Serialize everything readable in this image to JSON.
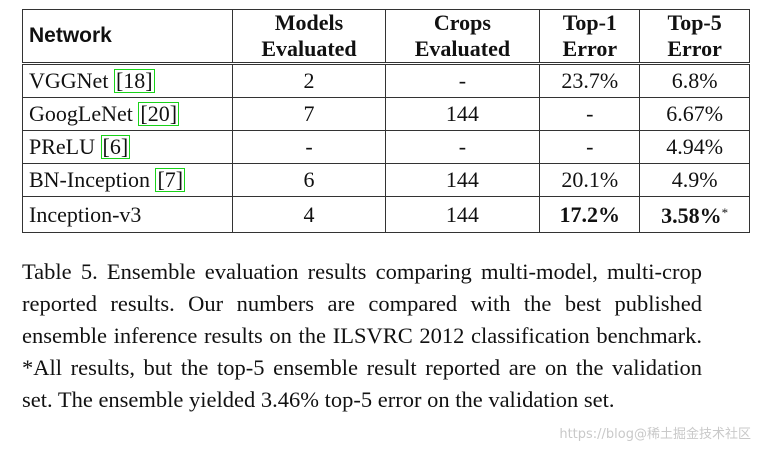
{
  "table": {
    "headers": {
      "network": "Network",
      "models": [
        "Models",
        "Evaluated"
      ],
      "crops": [
        "Crops",
        "Evaluated"
      ],
      "top1": [
        "Top-1",
        "Error"
      ],
      "top5": [
        "Top-5",
        "Error"
      ]
    },
    "rows": [
      {
        "network": "VGGNet",
        "ref": "18",
        "models": "2",
        "crops": "-",
        "top1": "23.7%",
        "top5": "6.8%"
      },
      {
        "network": "GoogLeNet",
        "ref": "20",
        "models": "7",
        "crops": "144",
        "top1": "-",
        "top5": "6.67%"
      },
      {
        "network": "PReLU",
        "ref": "6",
        "models": "-",
        "crops": "-",
        "top1": "-",
        "top5": "4.94%"
      },
      {
        "network": "BN-Inception",
        "ref": "7",
        "models": "6",
        "crops": "144",
        "top1": "20.1%",
        "top5": "4.9%"
      },
      {
        "network": "Inception-v3",
        "models": "4",
        "crops": "144",
        "top1": "17.2%",
        "top5": "3.58%",
        "top5_mark": "*"
      }
    ]
  },
  "caption": "Table 5. Ensemble evaluation results comparing multi-model, multi-crop reported results. Our numbers are compared with the best published ensemble inference results on the ILSVRC 2012 classification benchmark. *All results, but the top-5 ensemble result reported are on the validation set. The ensemble yielded 3.46% top-5 error on the validation set.",
  "watermark": "https://blog@稀土掘金技术社区"
}
